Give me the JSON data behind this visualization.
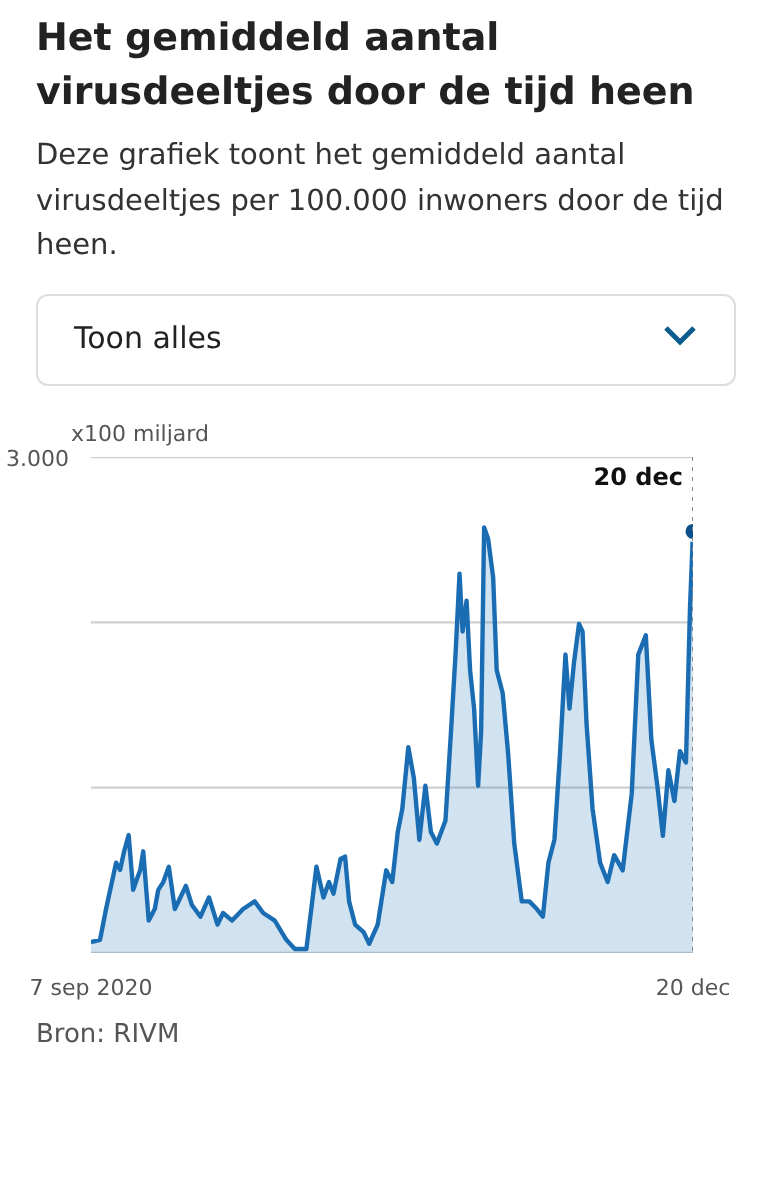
{
  "chart_data": {
    "type": "area",
    "title": "Het gemiddeld aantal virusdeeltjes door de tijd heen",
    "subtitle": "Deze grafiek toont het gemiddeld aantal virusdeeltjes per 100.000 inwoners door de tijd heen.",
    "ylabel": "x100 miljard",
    "annotations": [
      "Toon alles",
      "Bron: RIVM"
    ],
    "x": [
      "2020-09-07",
      "2020-09-25",
      "2020-10-07",
      "2020-10-27",
      "2020-11-04",
      "2020-11-12",
      "2020-11-21",
      "2020-11-30",
      "2020-12-08",
      "2020-12-14",
      "2020-12-20",
      "2020-12-31",
      "2021-01-12",
      "2021-01-19",
      "2021-01-29",
      "2021-02-09",
      "2021-02-21",
      "2021-03-04",
      "2021-03-15",
      "2021-03-27",
      "2021-04-13",
      "2021-04-30",
      "2021-05-17",
      "2021-05-28",
      "2021-06-15",
      "2021-07-07",
      "2021-07-30",
      "2021-08-16",
      "2021-09-08",
      "2021-10-01",
      "2021-10-18",
      "2021-11-10",
      "2021-11-30",
      "2021-12-14",
      "2021-12-25",
      "2022-01-03",
      "2022-01-17",
      "2022-01-26",
      "2022-02-03",
      "2022-02-15",
      "2022-03-04",
      "2022-03-15",
      "2022-04-01",
      "2022-04-18",
      "2022-04-30",
      "2022-05-11",
      "2022-05-20",
      "2022-06-01",
      "2022-06-12",
      "2022-06-23",
      "2022-07-05",
      "2022-07-16",
      "2022-07-28",
      "2022-08-14",
      "2022-08-25",
      "2022-09-03",
      "2022-09-11",
      "2022-09-17",
      "2022-09-25",
      "2022-10-02",
      "2022-10-10",
      "2022-10-18",
      "2022-10-24",
      "2022-10-30",
      "2022-11-07",
      "2022-11-17",
      "2022-11-24",
      "2022-12-06",
      "2022-12-17",
      "2022-12-29",
      "2023-01-13",
      "2023-01-28",
      "2023-02-12",
      "2023-02-24",
      "2023-03-07",
      "2023-03-19",
      "2023-03-30",
      "2023-04-10",
      "2023-04-18",
      "2023-04-27",
      "2023-05-07",
      "2023-05-14",
      "2023-05-22",
      "2023-06-03",
      "2023-06-18",
      "2023-07-03",
      "2023-07-16",
      "2023-08-02",
      "2023-08-20",
      "2023-09-02",
      "2023-09-17",
      "2023-09-28",
      "2023-10-10",
      "2023-10-21",
      "2023-11-01",
      "2023-11-13",
      "2023-11-24",
      "2023-12-06",
      "2023-12-14",
      "2023-12-20"
    ],
    "series": [
      {
        "color": "#1a6db3",
        "values": [
          66,
          80,
          266,
          546,
          503,
          615,
          713,
          382,
          452,
          500,
          615,
          196,
          266,
          382,
          429,
          522,
          266,
          336,
          406,
          290,
          220,
          336,
          172,
          242,
          196,
          266,
          312,
          242,
          196,
          80,
          24,
          24,
          522,
          336,
          429,
          359,
          569,
          583,
          312,
          172,
          126,
          56,
          172,
          500,
          429,
          732,
          871,
          1245,
          1059,
          685,
          1012,
          732,
          662,
          802,
          1339,
          1805,
          2294,
          1945,
          2131,
          1711,
          1478,
          1012,
          1339,
          2574,
          2504,
          2271,
          1711,
          1571,
          1199,
          662,
          312,
          312,
          266,
          220,
          546,
          685,
          1199,
          1805,
          1478,
          1758,
          1991,
          1945,
          1385,
          871,
          546,
          429,
          592,
          500,
          965,
          1805,
          1921,
          1291,
          1012,
          709,
          1105,
          919,
          1221,
          1152,
          2085,
          2550
        ]
      }
    ],
    "xlim": [
      "2020-09-07",
      "2023-12-20"
    ],
    "xticks": [
      {
        "value": "2020-09-07",
        "label": "7 sep 2020"
      },
      {
        "value": "2023-12-20",
        "label": "20 dec"
      }
    ],
    "ylim": [
      0,
      3000
    ],
    "yticks": [
      {
        "value": 0,
        "label": null
      },
      {
        "value": 1000,
        "label": null
      },
      {
        "value": 2000,
        "label": null
      },
      {
        "value": 3000,
        "label": "3.000"
      }
    ],
    "grid": "y",
    "ref_lines": [
      {
        "axis": "x",
        "value": "2023-12-20",
        "label": "20 dec",
        "line_style": "dotted",
        "color": "#888888"
      }
    ]
  }
}
